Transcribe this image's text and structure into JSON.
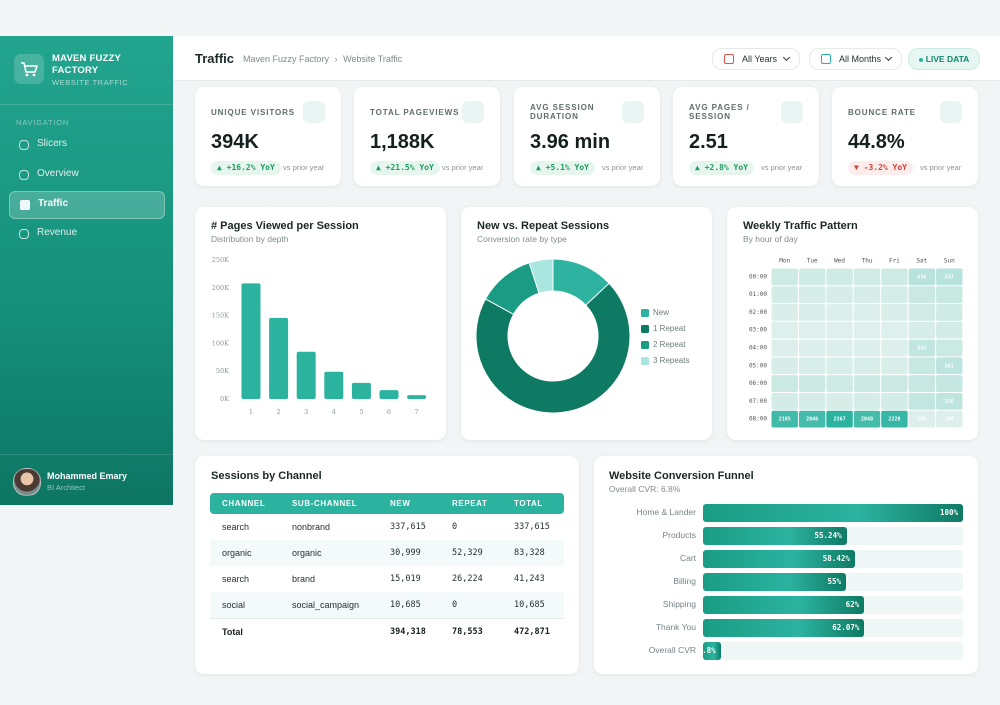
{
  "sidebar": {
    "brand": "MAVEN FUZZY FACTORY",
    "subtitle": "WEBSITE TRAFFIC",
    "nav_heading": "NAVIGATION",
    "nav": [
      "Slicers",
      "Overview",
      "Traffic",
      "Revenue"
    ],
    "active": 2,
    "user": {
      "name": "Mohammed Emary",
      "role": "BI Architect"
    }
  },
  "header": {
    "title": "Traffic",
    "breadcrumb": [
      "Maven Fuzzy Factory",
      "Website Traffic"
    ],
    "filters": [
      "All Years",
      "All Months"
    ],
    "live": "LIVE DATA"
  },
  "kpis": [
    {
      "label": "UNIQUE VISITORS",
      "value": "394K",
      "delta": "▲ +16.2% YoY",
      "note": "vs prior year",
      "trend": "up"
    },
    {
      "label": "TOTAL PAGEVIEWS",
      "value": "1,188K",
      "delta": "▲ +21.5% YoY",
      "note": "vs prior year",
      "trend": "up"
    },
    {
      "label": "AVG SESSION DURATION",
      "value": "3.96 min",
      "delta": "▲ +5.1% YoY",
      "note": "vs prior year",
      "trend": "up"
    },
    {
      "label": "AVG PAGES / SESSION",
      "value": "2.51",
      "delta": "▲ +2.8% YoY",
      "note": "vs prior year",
      "trend": "up"
    },
    {
      "label": "BOUNCE RATE",
      "value": "44.8%",
      "delta": "▼ -3.2% YoY",
      "note": "vs prior year",
      "trend": "down"
    }
  ],
  "chart_data": [
    {
      "type": "bar",
      "title": "# Pages Viewed per Session",
      "subtitle": "Distribution by depth",
      "categories": [
        "1",
        "2",
        "3",
        "4",
        "5",
        "6",
        "7"
      ],
      "values": [
        208000,
        146000,
        85000,
        49000,
        29000,
        16000,
        7000
      ],
      "color": "#2bb3a0",
      "ylim": [
        0,
        250000
      ],
      "yticks": [
        {
          "value": 0,
          "label": "0K"
        },
        {
          "value": 50000,
          "label": "50K"
        },
        {
          "value": 100000,
          "label": "100K"
        },
        {
          "value": 150000,
          "label": "150K"
        },
        {
          "value": 200000,
          "label": "200K"
        },
        {
          "value": 250000,
          "label": "250K"
        }
      ]
    },
    {
      "type": "pie",
      "donut": true,
      "title": "New vs. Repeat Sessions",
      "subtitle": "Conversion rate by type",
      "categories": [
        "New",
        "1 Repeat",
        "2 Repeat",
        "3 Repeats"
      ],
      "values": [
        13,
        70,
        12,
        5
      ],
      "colors": [
        "#2db3a0",
        "#0e7a64",
        "#1a9c84",
        "#a8e6df"
      ],
      "legend": "right"
    },
    {
      "type": "heatmap",
      "title": "Weekly Traffic Pattern",
      "subtitle": "By hour of day",
      "x": [
        "Mon",
        "Tue",
        "Wed",
        "Thu",
        "Fri",
        "Sat",
        "Sun"
      ],
      "y": [
        "00:00",
        "01:00",
        "02:00",
        "03:00",
        "04:00",
        "05:00",
        "06:00",
        "07:00",
        "08:00"
      ],
      "values": [
        [
          380,
          360,
          350,
          340,
          370,
          636,
          637
        ],
        [
          300,
          280,
          270,
          260,
          290,
          420,
          450
        ],
        [
          220,
          210,
          200,
          205,
          215,
          330,
          350
        ],
        [
          180,
          170,
          165,
          170,
          175,
          280,
          300
        ],
        [
          200,
          190,
          185,
          190,
          195,
          533,
          420
        ],
        [
          260,
          250,
          245,
          250,
          255,
          450,
          581
        ],
        [
          420,
          400,
          390,
          395,
          410,
          460,
          480
        ],
        [
          300,
          290,
          280,
          285,
          295,
          520,
          556
        ],
        [
          2105,
          2046,
          2367,
          2040,
          2228,
          198,
          190
        ]
      ],
      "value_labels": [
        [
          null,
          null,
          null,
          null,
          null,
          "636",
          "637"
        ],
        [
          null,
          null,
          null,
          null,
          null,
          null,
          null
        ],
        [
          null,
          null,
          null,
          null,
          null,
          null,
          null
        ],
        [
          null,
          null,
          null,
          null,
          null,
          null,
          null
        ],
        [
          null,
          null,
          null,
          null,
          null,
          "533",
          null
        ],
        [
          null,
          null,
          null,
          null,
          null,
          null,
          "581"
        ],
        [
          null,
          null,
          null,
          null,
          null,
          null,
          null
        ],
        [
          null,
          null,
          null,
          null,
          null,
          null,
          "556"
        ],
        [
          "2105",
          "2046",
          "2367",
          "2040",
          "2228",
          "198",
          "190"
        ]
      ],
      "colors": [
        "#dff0ec",
        "#2bb3a0"
      ]
    },
    {
      "type": "funnel",
      "title": "Website Conversion Funnel",
      "subtitle": "Overall CVR: 6.8%",
      "categories": [
        "Home & Lander",
        "Products",
        "Cart",
        "Billing",
        "Shipping",
        "Thank You",
        "Overall CVR"
      ],
      "values": [
        100,
        55.24,
        58.42,
        55,
        62,
        62.07,
        6.8
      ],
      "value_labels": [
        "100%",
        "55.24%",
        "58.42%",
        "55%",
        "62%",
        "62.07%",
        "6.8%"
      ],
      "xlim": [
        0,
        100
      ],
      "color": "#1a9c84"
    }
  ],
  "table": {
    "title": "Sessions by Channel",
    "columns": [
      "CHANNEL",
      "SUB-CHANNEL",
      "NEW",
      "REPEAT",
      "TOTAL"
    ],
    "rows": [
      [
        "search",
        "nonbrand",
        "337,615",
        "0",
        "337,615"
      ],
      [
        "organic",
        "organic",
        "30,999",
        "52,329",
        "83,328"
      ],
      [
        "search",
        "brand",
        "15,019",
        "26,224",
        "41,243"
      ],
      [
        "social",
        "social_campaign",
        "10,685",
        "0",
        "10,685"
      ]
    ],
    "total": [
      "Total",
      "394,318",
      "78,553",
      "472,871"
    ]
  }
}
